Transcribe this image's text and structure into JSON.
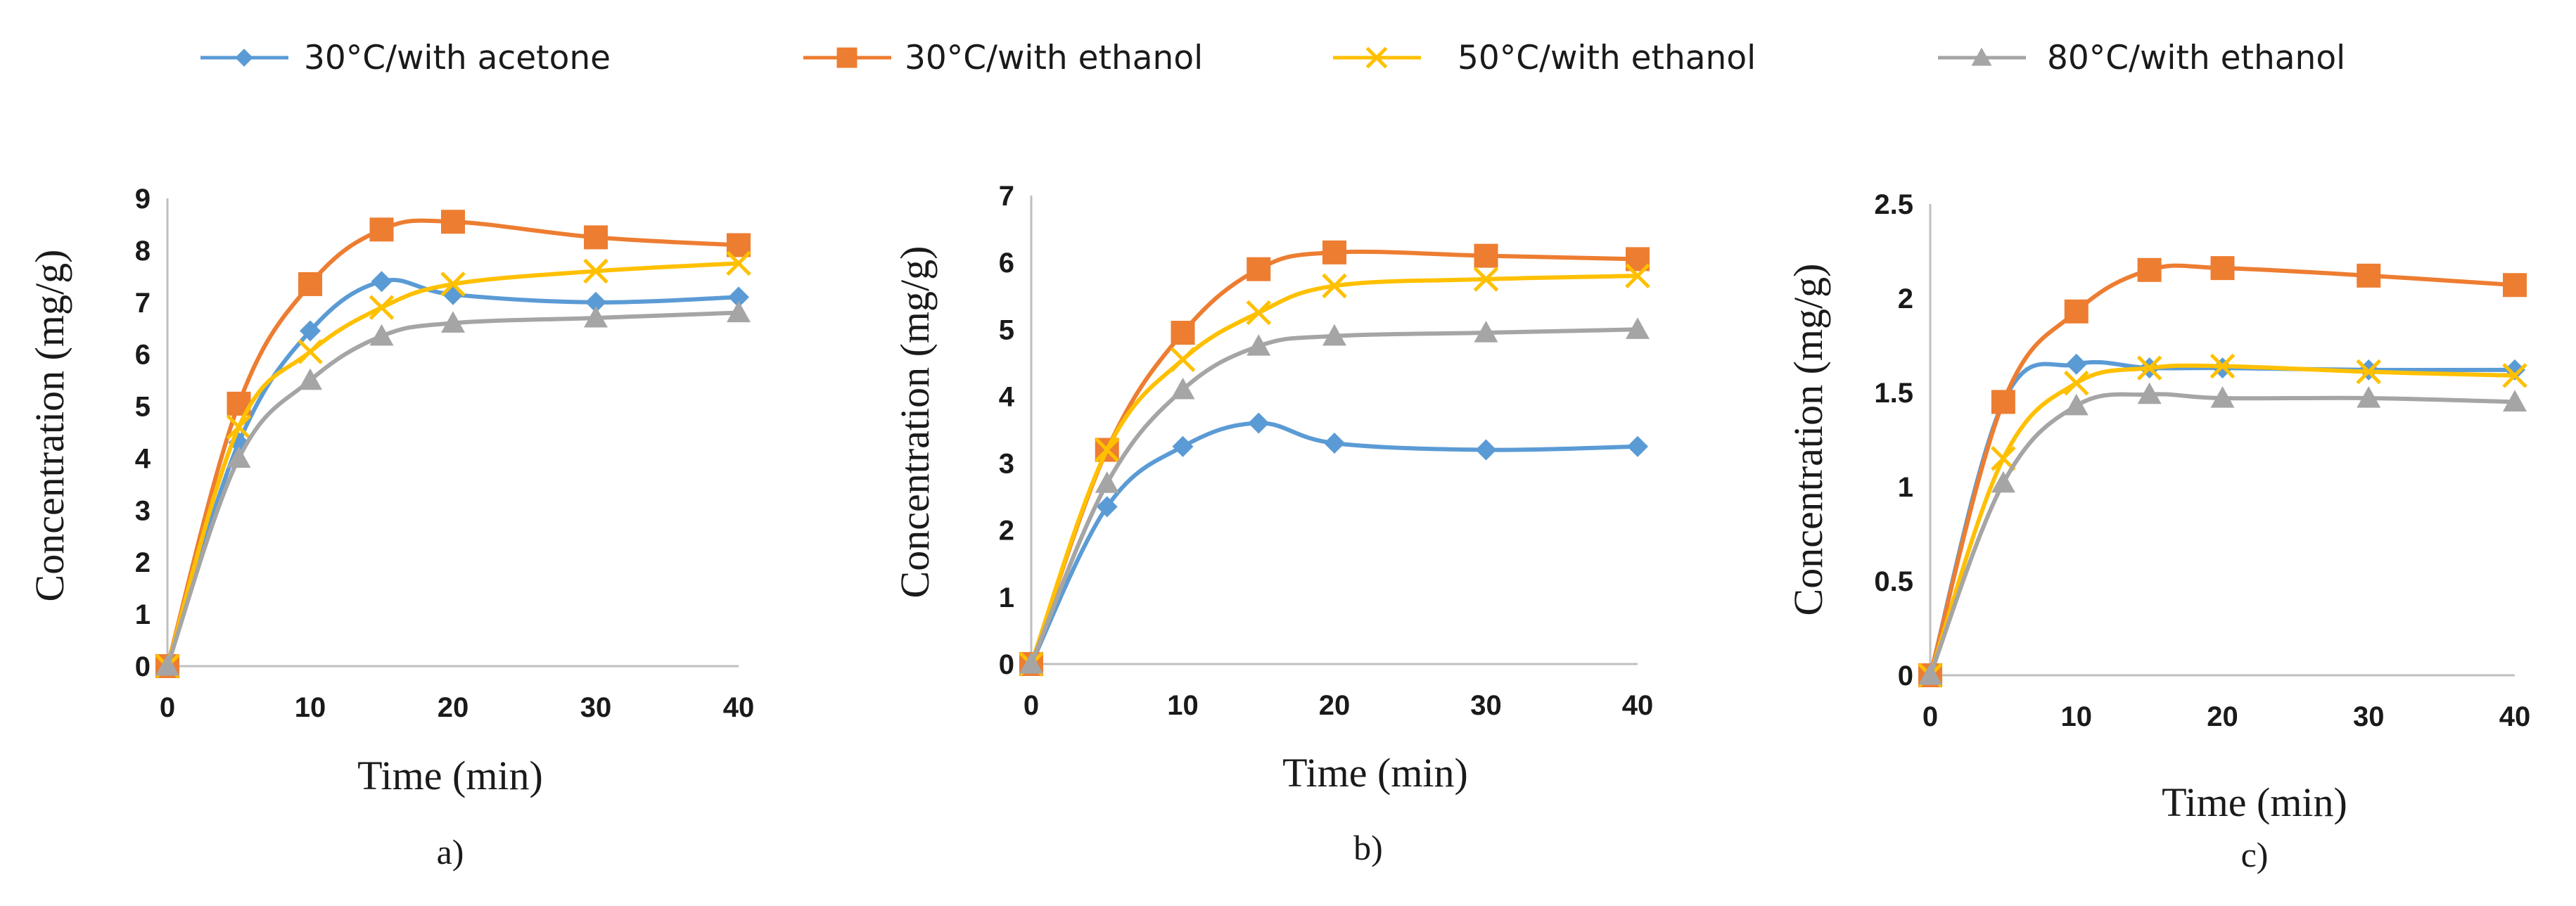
{
  "legend": [
    {
      "name": "30°C/with acetone",
      "color": "#5b9bd5",
      "marker": "diamond"
    },
    {
      "name": "30°C/with ethanol",
      "color": "#ed7d31",
      "marker": "square"
    },
    {
      "name": "50°C/with ethanol",
      "color": "#ffc000",
      "marker": "x"
    },
    {
      "name": "80°C/with ethanol",
      "color": "#a5a5a5",
      "marker": "triangle"
    }
  ],
  "chart_data": [
    {
      "type": "line",
      "panel_label": "a)",
      "xlabel": "Time (min)",
      "ylabel": "Concentration (mg/g)",
      "x": [
        0,
        5,
        10,
        15,
        20,
        30,
        40
      ],
      "xticks": [
        "0",
        "10",
        "20",
        "30",
        "40"
      ],
      "xtick_values": [
        0,
        10,
        20,
        30,
        40
      ],
      "yticks": [
        "0",
        "1",
        "2",
        "3",
        "4",
        "5",
        "6",
        "7",
        "8",
        "9"
      ],
      "ylim": [
        0,
        9
      ],
      "series": [
        {
          "name": "30°C/with acetone",
          "values": [
            0,
            4.3,
            6.45,
            7.4,
            7.15,
            7.0,
            7.1
          ]
        },
        {
          "name": "30°C/with ethanol",
          "values": [
            0,
            5.05,
            7.35,
            8.4,
            8.55,
            8.25,
            8.1
          ]
        },
        {
          "name": "50°C/with ethanol",
          "values": [
            0,
            4.6,
            6.05,
            6.9,
            7.35,
            7.6,
            7.75
          ]
        },
        {
          "name": "80°C/with ethanol",
          "values": [
            0,
            4.0,
            5.5,
            6.35,
            6.6,
            6.7,
            6.8
          ]
        }
      ]
    },
    {
      "type": "line",
      "panel_label": "b)",
      "xlabel": "Time (min)",
      "ylabel": "Concentration (mg/g)",
      "x": [
        0,
        5,
        10,
        15,
        20,
        30,
        40
      ],
      "xticks": [
        "0",
        "10",
        "20",
        "30",
        "40"
      ],
      "xtick_values": [
        0,
        10,
        20,
        30,
        40
      ],
      "yticks": [
        "0",
        "1",
        "2",
        "3",
        "4",
        "5",
        "6",
        "7"
      ],
      "ylim": [
        0,
        7
      ],
      "series": [
        {
          "name": "30°C/with acetone",
          "values": [
            0,
            2.35,
            3.25,
            3.6,
            3.3,
            3.2,
            3.25
          ]
        },
        {
          "name": "30°C/with ethanol",
          "values": [
            0,
            3.2,
            4.95,
            5.9,
            6.15,
            6.1,
            6.05
          ]
        },
        {
          "name": "50°C/with ethanol",
          "values": [
            0,
            3.2,
            4.55,
            5.25,
            5.65,
            5.75,
            5.8
          ]
        },
        {
          "name": "80°C/with ethanol",
          "values": [
            0,
            2.7,
            4.1,
            4.75,
            4.9,
            4.95,
            5.0
          ]
        }
      ]
    },
    {
      "type": "line",
      "panel_label": "c)",
      "xlabel": "Time (min)",
      "ylabel": "Concentration (mg/g)",
      "x": [
        0,
        5,
        10,
        15,
        20,
        30,
        40
      ],
      "xticks": [
        "0",
        "10",
        "20",
        "30",
        "40"
      ],
      "xtick_values": [
        0,
        10,
        20,
        30,
        40
      ],
      "yticks": [
        "0",
        "0.5",
        "1",
        "1.5",
        "2",
        "2.5"
      ],
      "ylim": [
        0,
        2.5
      ],
      "series": [
        {
          "name": "30°C/with acetone",
          "values": [
            0,
            1.45,
            1.65,
            1.63,
            1.63,
            1.62,
            1.62
          ]
        },
        {
          "name": "30°C/with ethanol",
          "values": [
            0,
            1.45,
            1.93,
            2.15,
            2.16,
            2.12,
            2.07
          ]
        },
        {
          "name": "50°C/with ethanol",
          "values": [
            0,
            1.15,
            1.55,
            1.63,
            1.64,
            1.61,
            1.59
          ]
        },
        {
          "name": "80°C/with ethanol",
          "values": [
            0,
            1.02,
            1.43,
            1.49,
            1.47,
            1.47,
            1.45
          ]
        }
      ]
    }
  ]
}
